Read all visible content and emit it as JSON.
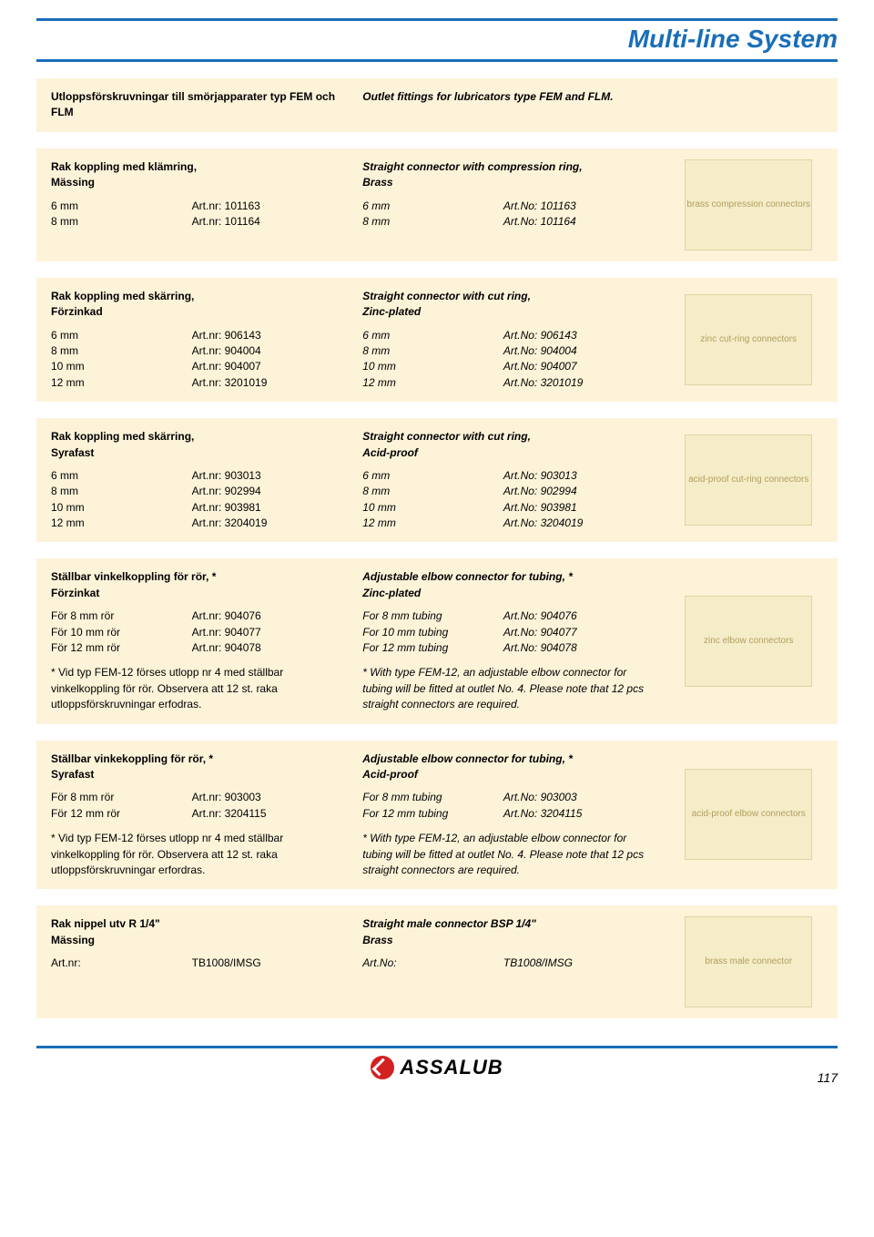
{
  "page_title": "Multi-line System",
  "header": {
    "sv": "Utloppsförskruvningar till smörjapparater typ FEM och FLM",
    "en": "Outlet fittings for lubricators type FEM and FLM."
  },
  "sections": [
    {
      "sv_title": "Rak koppling med klämring,",
      "sv_sub": "Mässing",
      "en_title": "Straight connector with compression ring,",
      "en_sub": "Brass",
      "rows_sv": [
        {
          "size": "6 mm",
          "art": "Art.nr: 101163"
        },
        {
          "size": "8 mm",
          "art": "Art.nr: 101164"
        }
      ],
      "rows_en": [
        {
          "size": "6 mm",
          "art": "Art.No: 101163"
        },
        {
          "size": "8 mm",
          "art": "Art.No: 101164"
        }
      ],
      "img_alt": "brass compression connectors"
    },
    {
      "sv_title": "Rak koppling med skärring,",
      "sv_sub": "Förzinkad",
      "en_title": "Straight connector with cut ring,",
      "en_sub": "Zinc-plated",
      "rows_sv": [
        {
          "size": "  6 mm",
          "art": "Art.nr: 906143"
        },
        {
          "size": "  8 mm",
          "art": "Art.nr: 904004"
        },
        {
          "size": "10 mm",
          "art": "Art.nr: 904007"
        },
        {
          "size": "12 mm",
          "art": "Art.nr: 3201019"
        }
      ],
      "rows_en": [
        {
          "size": "  6 mm",
          "art": "Art.No: 906143"
        },
        {
          "size": "  8 mm",
          "art": "Art.No: 904004"
        },
        {
          "size": "10 mm",
          "art": "Art.No: 904007"
        },
        {
          "size": "12 mm",
          "art": "Art.No: 3201019"
        }
      ],
      "img_alt": "zinc cut-ring connectors"
    },
    {
      "sv_title": "Rak koppling med skärring,",
      "sv_sub": "Syrafast",
      "en_title": "Straight connector with cut ring,",
      "en_sub": "Acid-proof",
      "rows_sv": [
        {
          "size": "  6 mm",
          "art": "Art.nr: 903013"
        },
        {
          "size": "  8 mm",
          "art": "Art.nr: 902994"
        },
        {
          "size": "10 mm",
          "art": "Art.nr: 903981"
        },
        {
          "size": "12 mm",
          "art": "Art.nr: 3204019"
        }
      ],
      "rows_en": [
        {
          "size": "  6 mm",
          "art": "Art.No: 903013"
        },
        {
          "size": "  8 mm",
          "art": "Art.No: 902994"
        },
        {
          "size": "10 mm",
          "art": "Art.No: 903981"
        },
        {
          "size": "12 mm",
          "art": "Art.No: 3204019"
        }
      ],
      "img_alt": "acid-proof cut-ring connectors"
    },
    {
      "sv_title": "Ställbar vinkelkoppling för rör, *",
      "sv_sub": "Förzinkat",
      "en_title": "Adjustable elbow connector for tubing, *",
      "en_sub": "Zinc-plated",
      "rows_sv": [
        {
          "size": "För   8 mm rör",
          "art": "Art.nr: 904076"
        },
        {
          "size": "För 10 mm rör",
          "art": "Art.nr: 904077"
        },
        {
          "size": "För 12 mm rör",
          "art": "Art.nr: 904078"
        }
      ],
      "rows_en": [
        {
          "size": "For   8 mm tubing",
          "art": "Art.No: 904076"
        },
        {
          "size": "For 10 mm tubing",
          "art": "Art.No: 904077"
        },
        {
          "size": "For 12 mm tubing",
          "art": "Art.No: 904078"
        }
      ],
      "note_sv": "* Vid typ FEM-12 förses utlopp nr 4 med ställbar vinkelkoppling för rör. Observera att 12 st. raka utloppsförskruvningar erfodras.",
      "note_en": "* With type FEM-12, an adjustable elbow connector for tubing will be fitted at outlet No. 4. Please note that 12 pcs straight connectors are required.",
      "img_alt": "zinc elbow connectors"
    },
    {
      "sv_title": "Ställbar vinkekoppling för rör, *",
      "sv_sub": "Syrafast",
      "en_title": "Adjustable elbow connector for tubing, *",
      "en_sub": "Acid-proof",
      "rows_sv": [
        {
          "size": "För 8 mm rör",
          "art": "Art.nr: 903003"
        },
        {
          "size": "För 12 mm rör",
          "art": "Art.nr: 3204115"
        }
      ],
      "rows_en": [
        {
          "size": "For 8 mm tubing",
          "art": "Art.No: 903003"
        },
        {
          "size": "For 12 mm tubing",
          "art": "Art.No: 3204115"
        }
      ],
      "note_sv": "* Vid typ FEM-12 förses utlopp nr 4 med ställbar vinkelkoppling för rör. Observera att 12 st. raka utloppsförskruvningar erfordras.",
      "note_en": "* With type FEM-12, an adjustable elbow connector for tubing will be fitted at outlet No. 4. Please note that 12 pcs straight connectors are required.",
      "img_alt": "acid-proof elbow connectors"
    },
    {
      "sv_title": "Rak nippel utv R 1/4\"",
      "sv_sub": "Mässing",
      "en_title": "Straight male connector BSP 1/4\"",
      "en_sub": "Brass",
      "rows_sv": [
        {
          "size": "Art.nr:",
          "art": "TB1008/IMSG"
        }
      ],
      "rows_en": [
        {
          "size": "Art.No:",
          "art": "TB1008/IMSG"
        }
      ],
      "img_alt": "brass male connector"
    }
  ],
  "footer_brand": "ASSALUB",
  "page_number": "117",
  "colors": {
    "brand_blue": "#1a6eb8",
    "section_bg": "#fdf3d9",
    "logo_red": "#d32020"
  }
}
